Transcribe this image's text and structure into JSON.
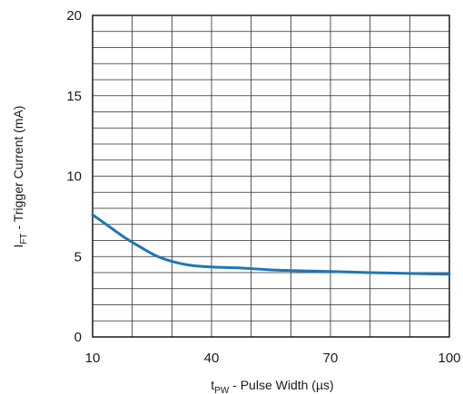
{
  "chart_data": {
    "type": "line",
    "xlabel": {
      "main": "t",
      "sub": "PW",
      "rest": " - Pulse Width (µs)"
    },
    "ylabel": {
      "main": "I",
      "sub": "FT",
      "rest": " - Trigger Current (mA)"
    },
    "xlim": [
      10,
      100
    ],
    "ylim": [
      0,
      20
    ],
    "x_ticks": [
      10,
      40,
      70,
      100
    ],
    "y_ticks": [
      0,
      5,
      10,
      15,
      20
    ],
    "x_grid_step": 10,
    "y_grid_step": 1,
    "grid": true,
    "series": [
      {
        "color": "#1f77b4",
        "x": [
          10,
          14,
          18,
          22,
          26,
          30,
          34,
          38,
          42,
          46,
          50,
          55,
          60,
          70,
          80,
          90,
          100
        ],
        "y": [
          7.6,
          6.9,
          6.2,
          5.6,
          5.05,
          4.7,
          4.48,
          4.38,
          4.33,
          4.3,
          4.25,
          4.17,
          4.13,
          4.07,
          4.0,
          3.95,
          3.9
        ]
      }
    ]
  }
}
